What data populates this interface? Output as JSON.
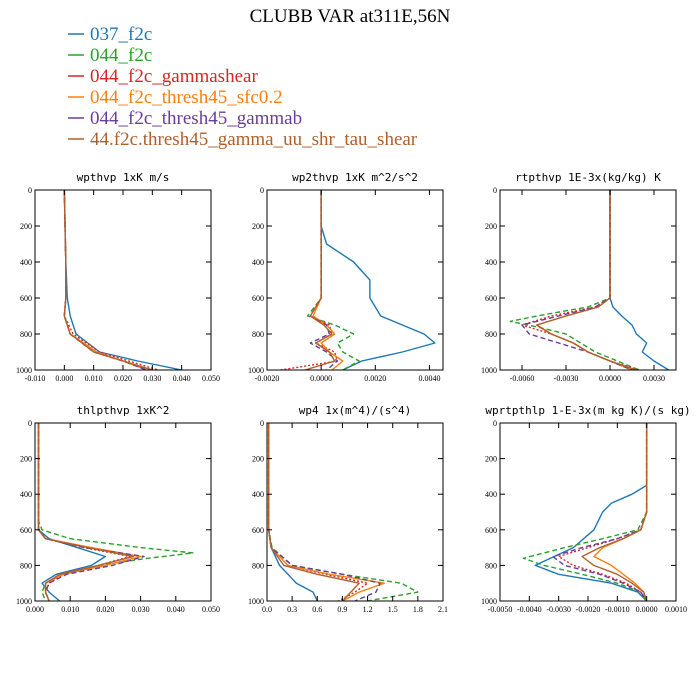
{
  "figure": {
    "title": "CLUBB VAR at311E,56N"
  },
  "legend": [
    {
      "label": "037_f2c",
      "color": "#1f77b4",
      "dash": "solid"
    },
    {
      "label": "044_f2c",
      "color": "#2ca02c",
      "dash": "dashed"
    },
    {
      "label": "044_f2c_gammashear",
      "color": "#d62728",
      "dash": "dotted"
    },
    {
      "label": "044_f2c_thresh45_sfc0.2",
      "color": "#ff7f0e",
      "dash": "solid"
    },
    {
      "label": "044_f2c_thresh45_gammab",
      "color": "#6a3d9a",
      "dash": "dashed"
    },
    {
      "label": "44.f2c.thresh45_gamma_uu_shr_tau_shear",
      "color": "#b0602c",
      "dash": "solid"
    }
  ],
  "chart_data": [
    {
      "type": "line",
      "title": "wpthvp  1xK m/s",
      "xlim": [
        -0.01,
        0.05
      ],
      "ylim": [
        1000,
        0
      ],
      "xticks": [
        "-0.010",
        "0.000",
        "0.010",
        "0.020",
        "0.030",
        "0.040",
        "0.050"
      ],
      "xtick_values": [
        -0.01,
        0,
        0.01,
        0.02,
        0.03,
        0.04,
        0.05
      ],
      "yticks": [
        "0",
        "200",
        "400",
        "600",
        "800",
        "1000"
      ],
      "ytick_values": [
        0,
        200,
        400,
        600,
        800,
        1000
      ],
      "series": [
        {
          "y": [
            0,
            400,
            600,
            700,
            800,
            900,
            950,
            1000
          ],
          "x": [
            0,
            0.0005,
            0.001,
            0.002,
            0.004,
            0.012,
            0.025,
            0.04
          ]
        },
        {
          "y": [
            0,
            400,
            600,
            700,
            800,
            900,
            950,
            1000
          ],
          "x": [
            0,
            0.0005,
            0.0005,
            0.0,
            0.002,
            0.01,
            0.02,
            0.03
          ]
        },
        {
          "y": [
            0,
            400,
            600,
            700,
            800,
            900,
            950,
            1000
          ],
          "x": [
            0,
            0.0005,
            0.0005,
            0.0,
            0.003,
            0.012,
            0.022,
            0.032
          ]
        },
        {
          "y": [
            0,
            400,
            600,
            700,
            800,
            900,
            950,
            1000
          ],
          "x": [
            0,
            0.0005,
            0.0005,
            0.0,
            0.002,
            0.011,
            0.02,
            0.028
          ]
        },
        {
          "y": [
            0,
            400,
            600,
            700,
            800,
            900,
            950,
            1000
          ],
          "x": [
            0,
            0.0005,
            0.0005,
            0.0,
            0.002,
            0.01,
            0.02,
            0.028
          ]
        },
        {
          "y": [
            0,
            400,
            600,
            700,
            800,
            900,
            950,
            1000
          ],
          "x": [
            0,
            0.0005,
            0.0005,
            0.0,
            0.002,
            0.01,
            0.02,
            0.03
          ]
        }
      ]
    },
    {
      "type": "line",
      "title": "wp2thvp  1xK m^2/s^2",
      "xlim": [
        -0.002,
        0.0045
      ],
      "ylim": [
        1000,
        0
      ],
      "xticks": [
        "-0.0020",
        "0.0000",
        "0.0020",
        "0.0040"
      ],
      "xtick_values": [
        -0.002,
        0,
        0.002,
        0.004
      ],
      "yticks": [
        "0",
        "200",
        "400",
        "600",
        "800",
        "1000"
      ],
      "ytick_values": [
        0,
        200,
        400,
        600,
        800,
        1000
      ],
      "series": [
        {
          "y": [
            0,
            200,
            300,
            400,
            500,
            600,
            700,
            800,
            850,
            900,
            950,
            1000
          ],
          "x": [
            0,
            0,
            0.0002,
            0.0012,
            0.0018,
            0.0018,
            0.0022,
            0.0038,
            0.0042,
            0.003,
            0.0015,
            0.0008
          ]
        },
        {
          "y": [
            0,
            200,
            600,
            700,
            750,
            800,
            850,
            900,
            950,
            1000
          ],
          "x": [
            0,
            0,
            0.0,
            -0.0005,
            0.0005,
            0.0012,
            0.0006,
            0.0008,
            0.0014,
            0.0008
          ]
        },
        {
          "y": [
            0,
            200,
            600,
            700,
            750,
            800,
            850,
            900,
            950,
            1000
          ],
          "x": [
            0,
            0,
            0.0,
            -0.0004,
            0.0003,
            0.0004,
            -0.0002,
            0.0005,
            0.0006,
            -0.0015
          ]
        },
        {
          "y": [
            0,
            200,
            600,
            700,
            750,
            800,
            850,
            900,
            950,
            1000
          ],
          "x": [
            0,
            0,
            0.0,
            -0.0003,
            0.0002,
            0.0005,
            0.0,
            0.0003,
            0.0008,
            0.0004
          ]
        },
        {
          "y": [
            0,
            200,
            600,
            700,
            750,
            800,
            850,
            900,
            950,
            1000
          ],
          "x": [
            0,
            0,
            0.0,
            -0.0004,
            0.0002,
            0.0003,
            -0.0004,
            0.0002,
            0.0006,
            0.0002
          ]
        },
        {
          "y": [
            0,
            200,
            600,
            700,
            750,
            800,
            850,
            900,
            950,
            1000
          ],
          "x": [
            0,
            0,
            0.0,
            -0.0004,
            0.0001,
            0.0004,
            -0.0002,
            0.0003,
            0.0005,
            -0.0006
          ]
        }
      ]
    },
    {
      "type": "line",
      "title": "rtpthvp  1E-3x(kg/kg) K",
      "xlim": [
        -0.0075,
        0.0045
      ],
      "ylim": [
        1000,
        0
      ],
      "xticks": [
        "-0.0060",
        "-0.0030",
        "0.0000",
        "0.0030"
      ],
      "xtick_values": [
        -0.006,
        -0.003,
        0,
        0.003
      ],
      "yticks": [
        "0",
        "200",
        "400",
        "600",
        "800",
        "1000"
      ],
      "ytick_values": [
        0,
        200,
        400,
        600,
        800,
        1000
      ],
      "series": [
        {
          "y": [
            0,
            600,
            650,
            700,
            750,
            800,
            850,
            900,
            950,
            1000
          ],
          "x": [
            0,
            0,
            0.0002,
            0.0008,
            0.0015,
            0.0018,
            0.0025,
            0.0022,
            0.003,
            0.004
          ]
        },
        {
          "y": [
            0,
            600,
            650,
            700,
            730,
            760,
            800,
            850,
            900,
            950,
            1000
          ],
          "x": [
            0,
            0,
            -0.0015,
            -0.005,
            -0.0068,
            -0.005,
            -0.003,
            -0.002,
            -0.001,
            0.0005,
            0.002
          ]
        },
        {
          "y": [
            0,
            600,
            650,
            700,
            750,
            800,
            850,
            900,
            950,
            1000
          ],
          "x": [
            0,
            0,
            -0.001,
            -0.004,
            -0.006,
            -0.004,
            -0.0025,
            -0.0015,
            0.0,
            0.002
          ]
        },
        {
          "y": [
            0,
            600,
            650,
            700,
            750,
            800,
            850,
            900,
            950,
            1000
          ],
          "x": [
            0,
            0,
            -0.0008,
            -0.003,
            -0.005,
            -0.004,
            -0.0025,
            -0.0015,
            0.0,
            0.0015
          ]
        },
        {
          "y": [
            0,
            600,
            650,
            700,
            750,
            800,
            850,
            900,
            950,
            1000
          ],
          "x": [
            0,
            0,
            -0.001,
            -0.0035,
            -0.006,
            -0.0055,
            -0.0035,
            -0.0015,
            0.0,
            0.0015
          ]
        },
        {
          "y": [
            0,
            600,
            650,
            700,
            750,
            800,
            850,
            900,
            950,
            1000
          ],
          "x": [
            0,
            0,
            -0.0008,
            -0.003,
            -0.005,
            -0.004,
            -0.0025,
            -0.0015,
            0.0,
            0.0018
          ]
        }
      ]
    },
    {
      "type": "line",
      "title": "thlpthvp  1xK^2",
      "xlim": [
        0,
        0.05
      ],
      "ylim": [
        1000,
        0
      ],
      "xticks": [
        "0.000",
        "0.010",
        "0.020",
        "0.030",
        "0.040",
        "0.050"
      ],
      "xtick_values": [
        0,
        0.01,
        0.02,
        0.03,
        0.04,
        0.05
      ],
      "yticks": [
        "0",
        "200",
        "400",
        "600",
        "800",
        "1000"
      ],
      "ytick_values": [
        0,
        200,
        400,
        600,
        800,
        1000
      ],
      "series": [
        {
          "y": [
            0,
            600,
            650,
            700,
            750,
            800,
            850,
            900,
            950,
            1000
          ],
          "x": [
            0.001,
            0.001,
            0.004,
            0.012,
            0.02,
            0.016,
            0.006,
            0.002,
            0.004,
            0.007
          ]
        },
        {
          "y": [
            0,
            550,
            600,
            650,
            700,
            730,
            760,
            800,
            850,
            900,
            950,
            1000
          ],
          "x": [
            0.001,
            0.001,
            0.002,
            0.01,
            0.03,
            0.045,
            0.032,
            0.018,
            0.008,
            0.003,
            0.002,
            0.003
          ]
        },
        {
          "y": [
            0,
            600,
            650,
            700,
            750,
            800,
            850,
            900,
            950,
            1000
          ],
          "x": [
            0.001,
            0.001,
            0.003,
            0.014,
            0.027,
            0.018,
            0.008,
            0.004,
            0.003,
            0.004
          ]
        },
        {
          "y": [
            0,
            600,
            650,
            700,
            750,
            800,
            850,
            900,
            950,
            1000
          ],
          "x": [
            0.001,
            0.001,
            0.003,
            0.016,
            0.03,
            0.02,
            0.008,
            0.003,
            0.003,
            0.004
          ]
        },
        {
          "y": [
            0,
            600,
            650,
            700,
            750,
            800,
            850,
            900,
            950,
            1000
          ],
          "x": [
            0.001,
            0.001,
            0.003,
            0.014,
            0.031,
            0.022,
            0.009,
            0.004,
            0.003,
            0.004
          ]
        },
        {
          "y": [
            0,
            600,
            650,
            700,
            750,
            800,
            850,
            900,
            950,
            1000
          ],
          "x": [
            0.001,
            0.001,
            0.003,
            0.015,
            0.028,
            0.018,
            0.007,
            0.003,
            0.003,
            0.004
          ]
        }
      ]
    },
    {
      "type": "line",
      "title": "wp4  1x(m^4)/(s^4)",
      "xlim": [
        0,
        2.1
      ],
      "ylim": [
        1000,
        0
      ],
      "xticks": [
        "0.0",
        "0.3",
        "0.6",
        "0.9",
        "1.2",
        "1.5",
        "1.8",
        "2.1"
      ],
      "xtick_values": [
        0,
        0.3,
        0.6,
        0.9,
        1.2,
        1.5,
        1.8,
        2.1
      ],
      "yticks": [
        "0",
        "200",
        "400",
        "600",
        "800",
        "1000"
      ],
      "ytick_values": [
        0,
        200,
        400,
        600,
        800,
        1000
      ],
      "series": [
        {
          "y": [
            0,
            600,
            700,
            800,
            900,
            950,
            1000
          ],
          "x": [
            0.02,
            0.02,
            0.05,
            0.15,
            0.35,
            0.55,
            0.6
          ]
        },
        {
          "y": [
            0,
            600,
            700,
            800,
            850,
            900,
            950,
            1000
          ],
          "x": [
            0.02,
            0.02,
            0.06,
            0.3,
            0.9,
            1.6,
            1.8,
            1.2
          ]
        },
        {
          "y": [
            0,
            600,
            700,
            800,
            850,
            900,
            950,
            1000
          ],
          "x": [
            0.02,
            0.02,
            0.05,
            0.25,
            0.7,
            1.2,
            1.05,
            0.85
          ]
        },
        {
          "y": [
            0,
            600,
            700,
            800,
            850,
            900,
            950,
            1000
          ],
          "x": [
            0.02,
            0.02,
            0.05,
            0.25,
            0.75,
            1.4,
            1.1,
            0.9
          ]
        },
        {
          "y": [
            0,
            600,
            700,
            800,
            850,
            900,
            950,
            1000
          ],
          "x": [
            0.02,
            0.02,
            0.05,
            0.3,
            0.9,
            1.35,
            1.3,
            1.05
          ]
        },
        {
          "y": [
            0,
            600,
            700,
            800,
            850,
            900,
            950,
            1000
          ],
          "x": [
            0.02,
            0.02,
            0.05,
            0.2,
            0.6,
            1.1,
            1.0,
            0.9
          ]
        }
      ]
    },
    {
      "type": "line",
      "title": "wprtpthlp  1-E-3x(m kg K)/(s kg)",
      "xlim": [
        -0.005,
        0.001
      ],
      "ylim": [
        1000,
        0
      ],
      "xticks": [
        "-0.0050",
        "-0.0040",
        "-0.0030",
        "-0.0020",
        "-0.0010",
        "0.0000",
        "0.0010"
      ],
      "xtick_values": [
        -0.005,
        -0.004,
        -0.003,
        -0.002,
        -0.001,
        0,
        0.001
      ],
      "yticks": [
        "0",
        "200",
        "400",
        "600",
        "800",
        "1000"
      ],
      "ytick_values": [
        0,
        200,
        400,
        600,
        800,
        1000
      ],
      "series": [
        {
          "y": [
            0,
            350,
            400,
            450,
            500,
            600,
            700,
            800,
            850,
            900,
            950,
            1000
          ],
          "x": [
            0,
            0,
            -0.0005,
            -0.0012,
            -0.0015,
            -0.0018,
            -0.0025,
            -0.0038,
            -0.003,
            -0.0012,
            -0.0003,
            0
          ]
        },
        {
          "y": [
            0,
            500,
            600,
            650,
            700,
            760,
            800,
            850,
            900,
            950,
            1000
          ],
          "x": [
            0,
            0,
            -0.0003,
            -0.0015,
            -0.0028,
            -0.0042,
            -0.0035,
            -0.0022,
            -0.001,
            -0.0002,
            0
          ]
        },
        {
          "y": [
            0,
            500,
            600,
            650,
            700,
            750,
            800,
            850,
            900,
            950,
            1000
          ],
          "x": [
            0,
            0,
            -0.0002,
            -0.001,
            -0.002,
            -0.003,
            -0.0025,
            -0.0015,
            -0.0007,
            -0.0002,
            0
          ]
        },
        {
          "y": [
            0,
            500,
            600,
            650,
            700,
            750,
            800,
            850,
            900,
            950,
            1000
          ],
          "x": [
            0,
            0,
            -0.0002,
            -0.0008,
            -0.0015,
            -0.0018,
            -0.0012,
            -0.0008,
            -0.0004,
            -0.0001,
            0
          ]
        },
        {
          "y": [
            0,
            500,
            600,
            650,
            700,
            750,
            800,
            850,
            900,
            950,
            1000
          ],
          "x": [
            0,
            0,
            -0.0002,
            -0.001,
            -0.0022,
            -0.0032,
            -0.0028,
            -0.0016,
            -0.0008,
            -0.0002,
            0
          ]
        },
        {
          "y": [
            0,
            500,
            600,
            650,
            700,
            750,
            800,
            850,
            900,
            950,
            1000
          ],
          "x": [
            0,
            0,
            -0.0002,
            -0.0008,
            -0.0016,
            -0.0022,
            -0.0018,
            -0.001,
            -0.0005,
            -0.0001,
            0
          ]
        }
      ]
    }
  ]
}
